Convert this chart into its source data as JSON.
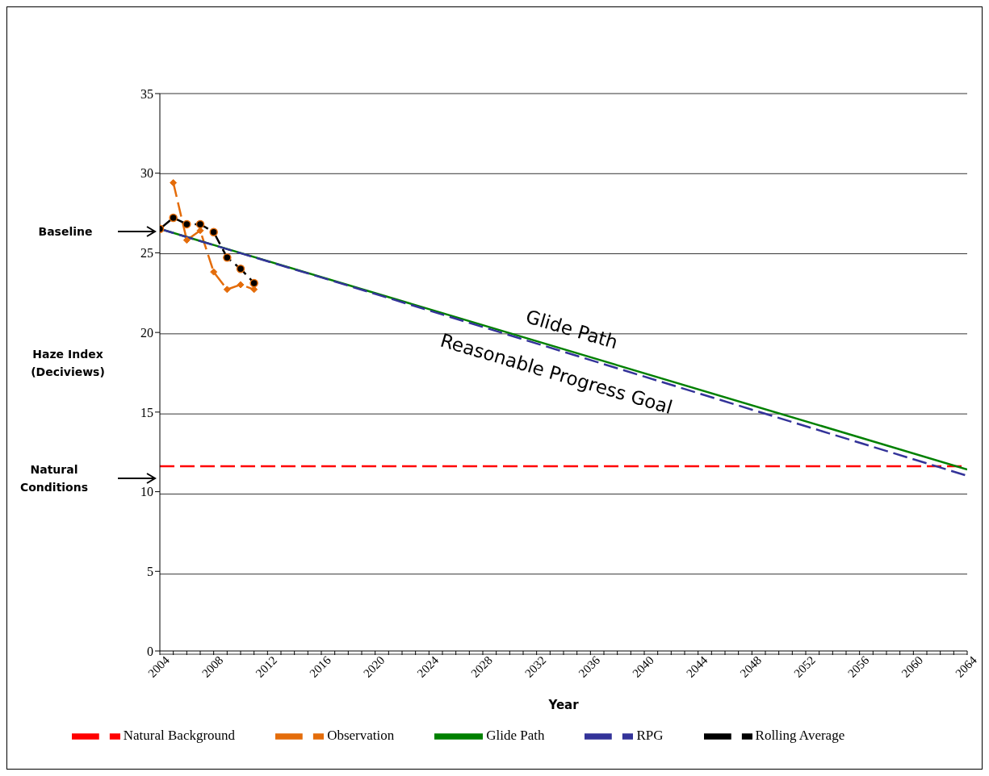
{
  "chart_data": {
    "type": "line",
    "xlabel": "Year",
    "ylabel": "Haze Index (Deciviews)",
    "series": [
      {
        "name": "Natural Background",
        "color": "#ff0000",
        "line_style": "dashed",
        "marker": "none",
        "x": [
          2004,
          2064
        ],
        "values": [
          11.6,
          11.6
        ]
      },
      {
        "name": "Observation",
        "color": "#e46c0a",
        "line_style": "dashed",
        "marker": "diamond",
        "x": [
          2005,
          2006,
          2007,
          2008,
          2009,
          2010,
          2011
        ],
        "values": [
          29.4,
          25.8,
          26.4,
          23.8,
          22.7,
          23.0,
          22.7
        ]
      },
      {
        "name": "Glide Path",
        "color": "#008000",
        "line_style": "solid",
        "marker": "none",
        "x": [
          2004,
          2064
        ],
        "values": [
          26.5,
          11.4
        ]
      },
      {
        "name": "RPG",
        "color": "#333399",
        "line_style": "dashed",
        "marker": "none",
        "x": [
          2004,
          2017,
          2064
        ],
        "values": [
          26.5,
          23.2,
          11.0
        ]
      },
      {
        "name": "Rolling Average",
        "color": "#000000",
        "line_style": "dashed",
        "marker": "circle",
        "x": [
          2004,
          2005,
          2006,
          2007,
          2008,
          2009,
          2010,
          2011
        ],
        "values": [
          26.5,
          27.2,
          26.8,
          26.8,
          26.3,
          24.7,
          24.0,
          23.1
        ]
      }
    ],
    "annotations": [
      "Baseline",
      "Natural Conditions",
      "Glide Path",
      "Reasonable Progress Goal"
    ],
    "xlim": [
      2004,
      2064
    ],
    "xticks": [
      2004,
      {
        "value": 2005,
        "label": null
      },
      {
        "value": 2006,
        "label": null
      },
      {
        "value": 2007,
        "label": null
      },
      2008,
      {
        "value": 2009,
        "label": null
      },
      {
        "value": 2010,
        "label": null
      },
      {
        "value": 2011,
        "label": null
      },
      2012,
      {
        "value": 2013,
        "label": null
      },
      {
        "value": 2014,
        "label": null
      },
      {
        "value": 2015,
        "label": null
      },
      2016,
      {
        "value": 2017,
        "label": null
      },
      {
        "value": 2018,
        "label": null
      },
      {
        "value": 2019,
        "label": null
      },
      2020,
      {
        "value": 2021,
        "label": null
      },
      {
        "value": 2022,
        "label": null
      },
      {
        "value": 2023,
        "label": null
      },
      2024,
      {
        "value": 2025,
        "label": null
      },
      {
        "value": 2026,
        "label": null
      },
      {
        "value": 2027,
        "label": null
      },
      2028,
      {
        "value": 2029,
        "label": null
      },
      {
        "value": 2030,
        "label": null
      },
      {
        "value": 2031,
        "label": null
      },
      2032,
      {
        "value": 2033,
        "label": null
      },
      {
        "value": 2034,
        "label": null
      },
      {
        "value": 2035,
        "label": null
      },
      2036,
      {
        "value": 2037,
        "label": null
      },
      {
        "value": 2038,
        "label": null
      },
      {
        "value": 2039,
        "label": null
      },
      2040,
      {
        "value": 2041,
        "label": null
      },
      {
        "value": 2042,
        "label": null
      },
      {
        "value": 2043,
        "label": null
      },
      2044,
      {
        "value": 2045,
        "label": null
      },
      {
        "value": 2046,
        "label": null
      },
      {
        "value": 2047,
        "label": null
      },
      2048,
      {
        "value": 2049,
        "label": null
      },
      {
        "value": 2050,
        "label": null
      },
      {
        "value": 2051,
        "label": null
      },
      2052,
      {
        "value": 2053,
        "label": null
      },
      {
        "value": 2054,
        "label": null
      },
      {
        "value": 2055,
        "label": null
      },
      2056,
      {
        "value": 2057,
        "label": null
      },
      {
        "value": 2058,
        "label": null
      },
      {
        "value": 2059,
        "label": null
      },
      2060,
      {
        "value": 2061,
        "label": null
      },
      {
        "value": 2062,
        "label": null
      },
      {
        "value": 2063,
        "label": null
      },
      2064
    ],
    "ylim": [
      0,
      35
    ],
    "yticks": [
      0,
      5,
      10,
      15,
      20,
      25,
      30,
      35
    ],
    "grid": "y",
    "legend": "bottom"
  }
}
